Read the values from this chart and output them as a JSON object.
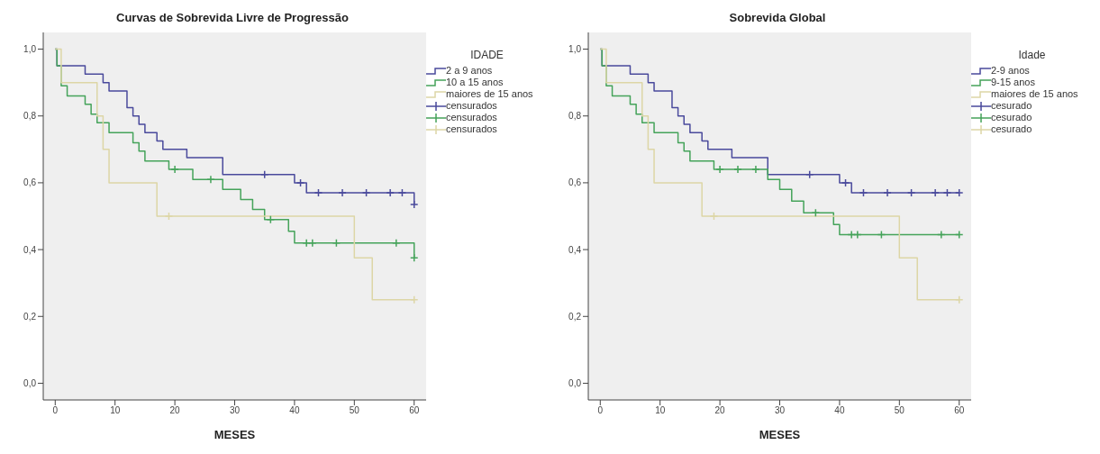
{
  "chart_data": [
    {
      "type": "step",
      "title": "Curvas de Sobrevida Livre de Progressão",
      "xlabel": "MESES",
      "legend_title": "IDADE",
      "legend": "right",
      "grid": false,
      "xlim": [
        -2,
        62
      ],
      "xticks": [
        0,
        10,
        20,
        30,
        40,
        50,
        60
      ],
      "ylim": [
        -0.05,
        1.05
      ],
      "yticks": [
        {
          "value": 0,
          "label": "0,0"
        },
        {
          "value": 0.2,
          "label": "0,2"
        },
        {
          "value": 0.4,
          "label": "0,4"
        },
        {
          "value": 0.6,
          "label": "0,6"
        },
        {
          "value": 0.8,
          "label": "0,8"
        },
        {
          "value": 1,
          "label": "1,0"
        }
      ],
      "series": [
        {
          "name": "2 a 9 anos",
          "color": "#4a4a9c",
          "marker": "none",
          "x": [
            0,
            0.3,
            5,
            8,
            9,
            12,
            13,
            14,
            15,
            17,
            18,
            22,
            28,
            40,
            42,
            60,
            60
          ],
          "values": [
            1,
            0.95,
            0.925,
            0.9,
            0.875,
            0.825,
            0.8,
            0.775,
            0.75,
            0.725,
            0.7,
            0.675,
            0.625,
            0.6,
            0.57,
            0.57,
            0.535
          ]
        },
        {
          "name": "10 a 15 anos",
          "color": "#45a35a",
          "marker": "none",
          "x": [
            0,
            0.3,
            1,
            2,
            5,
            6,
            7,
            9,
            13,
            14,
            15,
            19,
            23,
            28,
            31,
            33,
            35,
            39,
            40,
            60,
            60
          ],
          "values": [
            1,
            0.95,
            0.89,
            0.86,
            0.835,
            0.805,
            0.78,
            0.75,
            0.72,
            0.695,
            0.665,
            0.64,
            0.61,
            0.58,
            0.55,
            0.52,
            0.49,
            0.455,
            0.42,
            0.42,
            0.375
          ]
        },
        {
          "name": "maiores de 15 anos",
          "color": "#ddd6a6",
          "marker": "none",
          "x": [
            0,
            1,
            7,
            8,
            9,
            17,
            50,
            53,
            60
          ],
          "values": [
            1,
            0.9,
            0.8,
            0.7,
            0.6,
            0.5,
            0.375,
            0.25,
            0.25
          ]
        },
        {
          "name": "censurados",
          "type": "scatter",
          "color": "#4a4a9c",
          "marker": "cross",
          "x": [
            35,
            41,
            44,
            48,
            52,
            56,
            58,
            60
          ],
          "values": [
            0.625,
            0.6,
            0.57,
            0.57,
            0.57,
            0.57,
            0.57,
            0.535
          ]
        },
        {
          "name": "censurados",
          "type": "scatter",
          "color": "#45a35a",
          "marker": "cross",
          "x": [
            20,
            26,
            36,
            42,
            43,
            47,
            57,
            60
          ],
          "values": [
            0.64,
            0.61,
            0.49,
            0.42,
            0.42,
            0.42,
            0.42,
            0.375
          ]
        },
        {
          "name": "censurados",
          "type": "scatter",
          "color": "#ddd6a6",
          "marker": "cross",
          "x": [
            19,
            60
          ],
          "values": [
            0.5,
            0.25
          ]
        }
      ]
    },
    {
      "type": "step",
      "title": "Sobrevida Global",
      "xlabel": "MESES",
      "legend_title": "Idade",
      "legend": "right",
      "grid": false,
      "xlim": [
        -2,
        62
      ],
      "xticks": [
        0,
        10,
        20,
        30,
        40,
        50,
        60
      ],
      "ylim": [
        -0.05,
        1.05
      ],
      "yticks": [
        {
          "value": 0,
          "label": "0,0"
        },
        {
          "value": 0.2,
          "label": "0,2"
        },
        {
          "value": 0.4,
          "label": "0,4"
        },
        {
          "value": 0.6,
          "label": "0,6"
        },
        {
          "value": 0.8,
          "label": "0,8"
        },
        {
          "value": 1,
          "label": "1,0"
        }
      ],
      "series": [
        {
          "name": "2-9 anos",
          "color": "#4a4a9c",
          "marker": "none",
          "x": [
            0,
            0.3,
            5,
            8,
            9,
            12,
            13,
            14,
            15,
            17,
            18,
            22,
            28,
            40,
            42,
            60
          ],
          "values": [
            1,
            0.95,
            0.925,
            0.9,
            0.875,
            0.825,
            0.8,
            0.775,
            0.75,
            0.725,
            0.7,
            0.675,
            0.625,
            0.6,
            0.57,
            0.57
          ]
        },
        {
          "name": "9-15 anos",
          "color": "#45a35a",
          "marker": "none",
          "x": [
            0,
            0.3,
            1,
            2,
            5,
            6,
            7,
            9,
            13,
            14,
            15,
            19,
            28,
            30,
            32,
            34,
            39,
            40,
            60
          ],
          "values": [
            1,
            0.95,
            0.89,
            0.86,
            0.835,
            0.805,
            0.78,
            0.75,
            0.72,
            0.695,
            0.665,
            0.64,
            0.61,
            0.58,
            0.545,
            0.51,
            0.475,
            0.445,
            0.445
          ]
        },
        {
          "name": "maiores de 15 anos",
          "color": "#ddd6a6",
          "marker": "none",
          "x": [
            0,
            1,
            7,
            8,
            9,
            17,
            50,
            53,
            60
          ],
          "values": [
            1,
            0.9,
            0.8,
            0.7,
            0.6,
            0.5,
            0.375,
            0.25,
            0.25
          ]
        },
        {
          "name": "cesurado",
          "type": "scatter",
          "color": "#4a4a9c",
          "marker": "cross",
          "x": [
            35,
            41,
            44,
            48,
            52,
            56,
            58,
            60
          ],
          "values": [
            0.625,
            0.6,
            0.57,
            0.57,
            0.57,
            0.57,
            0.57,
            0.57
          ]
        },
        {
          "name": "cesurado",
          "type": "scatter",
          "color": "#45a35a",
          "marker": "cross",
          "x": [
            20,
            23,
            26,
            36,
            42,
            43,
            47,
            57,
            60
          ],
          "values": [
            0.64,
            0.64,
            0.64,
            0.51,
            0.445,
            0.445,
            0.445,
            0.445,
            0.445
          ]
        },
        {
          "name": "cesurado",
          "type": "scatter",
          "color": "#ddd6a6",
          "marker": "cross",
          "x": [
            19,
            60
          ],
          "values": [
            0.5,
            0.25
          ]
        }
      ]
    }
  ]
}
